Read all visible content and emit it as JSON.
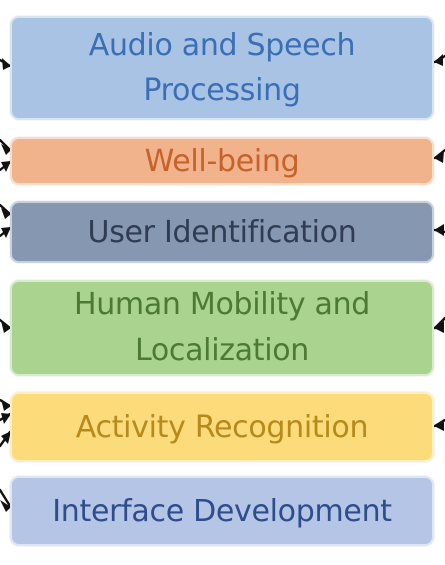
{
  "diagram": {
    "boxes": [
      {
        "label_lines": [
          "Audio and Speech",
          "Processing"
        ],
        "fill": "#a9c3e5",
        "text_color": "#3b6fb5"
      },
      {
        "label_lines": [
          "Well-being"
        ],
        "fill": "#f0b38c",
        "text_color": "#c7622a"
      },
      {
        "label_lines": [
          "User Identification"
        ],
        "fill": "#8697b1",
        "text_color": "#2f3c52"
      },
      {
        "label_lines": [
          "Human Mobility and",
          "Localization"
        ],
        "fill": "#a9d38f",
        "text_color": "#4d7a33"
      },
      {
        "label_lines": [
          "Activity Recognition"
        ],
        "fill": "#fbdb7a",
        "text_color": "#b68a1c"
      },
      {
        "label_lines": [
          "Interface Development"
        ],
        "fill": "#b5c5e6",
        "text_color": "#2f4d8c"
      }
    ],
    "arrow_color": "#111111"
  }
}
